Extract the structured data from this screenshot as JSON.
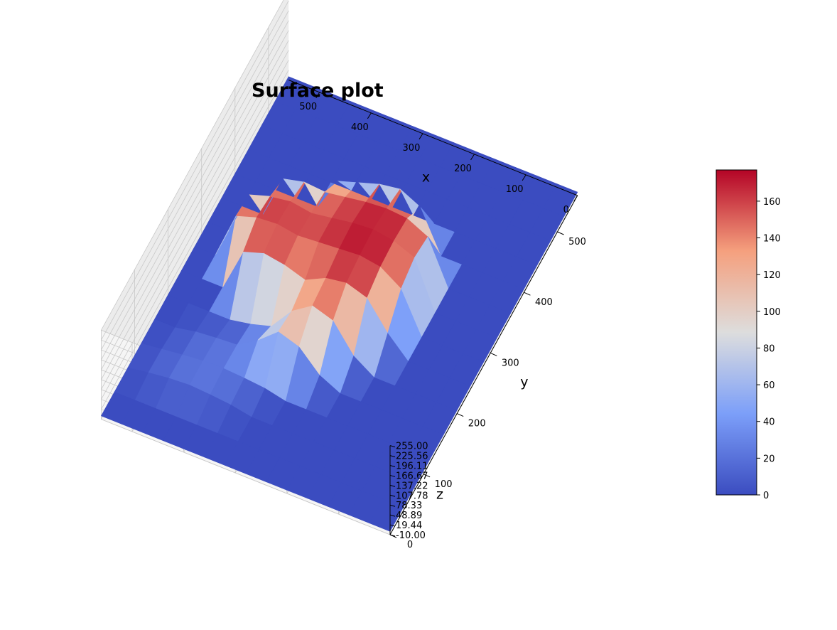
{
  "chart_data": {
    "type": "surface",
    "title": "Surface plot",
    "xlabel": "x",
    "ylabel": "y",
    "zlabel": "z",
    "xlim": [
      0,
      560
    ],
    "ylim": [
      0,
      560
    ],
    "zlim": [
      -10,
      255
    ],
    "x_ticks": [
      "0",
      "100",
      "200",
      "300",
      "400",
      "500"
    ],
    "y_ticks": [
      "0",
      "100",
      "200",
      "300",
      "400",
      "500"
    ],
    "z_ticks": [
      "-10.00",
      "19.44",
      "48.89",
      "78.33",
      "107.78",
      "137.22",
      "166.67",
      "196.11",
      "225.56",
      "255.00"
    ],
    "colormap": "coolwarm",
    "colorbar": {
      "min": 0,
      "max": 177,
      "ticks": [
        "0",
        "20",
        "40",
        "60",
        "80",
        "100",
        "120",
        "140",
        "160"
      ]
    },
    "surface": {
      "grid_x": [
        0,
        40,
        80,
        120,
        160,
        200,
        240,
        280,
        320,
        360,
        400,
        440,
        480,
        520,
        560
      ],
      "grid_y": [
        0,
        40,
        80,
        120,
        160,
        200,
        240,
        280,
        320,
        360,
        400,
        440,
        480,
        520,
        560
      ],
      "z_description": "rows indexed by y, columns by x",
      "z": [
        [
          0,
          0,
          0,
          0,
          0,
          0,
          0,
          0,
          0,
          0,
          0,
          0,
          0,
          0,
          0
        ],
        [
          0,
          0,
          0,
          0,
          0,
          0,
          0,
          0,
          0,
          0,
          0,
          0,
          0,
          0,
          0
        ],
        [
          0,
          0,
          0,
          0,
          0,
          0,
          0,
          0,
          0,
          12,
          18,
          22,
          18,
          10,
          0
        ],
        [
          0,
          0,
          0,
          0,
          0,
          0,
          0,
          0,
          14,
          20,
          24,
          22,
          16,
          8,
          0
        ],
        [
          0,
          0,
          0,
          0,
          0,
          0,
          30,
          90,
          110,
          60,
          22,
          18,
          12,
          0,
          0
        ],
        [
          0,
          0,
          0,
          0,
          0,
          40,
          120,
          140,
          100,
          30,
          12,
          0,
          0,
          0,
          0
        ],
        [
          0,
          0,
          0,
          0,
          60,
          140,
          160,
          150,
          120,
          140,
          150,
          130,
          0,
          0,
          0
        ],
        [
          0,
          0,
          0,
          0,
          120,
          160,
          170,
          165,
          160,
          155,
          165,
          160,
          140,
          0,
          0
        ],
        [
          0,
          0,
          0,
          0,
          140,
          165,
          175,
          170,
          160,
          150,
          160,
          150,
          130,
          0,
          0
        ],
        [
          0,
          0,
          0,
          0,
          130,
          160,
          165,
          160,
          150,
          140,
          145,
          130,
          0,
          0,
          0
        ],
        [
          0,
          0,
          0,
          0,
          0,
          120,
          150,
          140,
          120,
          100,
          0,
          0,
          0,
          0,
          0
        ],
        [
          0,
          0,
          0,
          0,
          0,
          0,
          0,
          0,
          0,
          0,
          0,
          0,
          0,
          0,
          0
        ],
        [
          0,
          0,
          0,
          0,
          0,
          0,
          0,
          0,
          0,
          0,
          0,
          0,
          0,
          0,
          0
        ],
        [
          0,
          0,
          0,
          0,
          0,
          0,
          0,
          0,
          0,
          0,
          0,
          0,
          0,
          0,
          0
        ],
        [
          0,
          0,
          0,
          0,
          0,
          0,
          0,
          0,
          0,
          0,
          0,
          0,
          0,
          0,
          0
        ]
      ]
    }
  }
}
